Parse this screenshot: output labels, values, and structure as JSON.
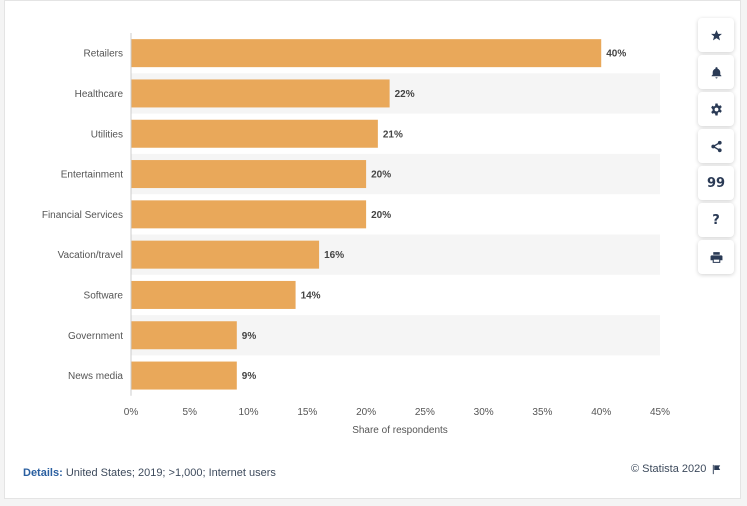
{
  "chart_data": {
    "type": "bar",
    "orientation": "horizontal",
    "categories": [
      "Retailers",
      "Healthcare",
      "Utilities",
      "Entertainment",
      "Financial Services",
      "Vacation/travel",
      "Software",
      "Government",
      "News media"
    ],
    "values": [
      40,
      22,
      21,
      20,
      20,
      16,
      14,
      9,
      9
    ],
    "value_labels": [
      "40%",
      "22%",
      "21%",
      "20%",
      "20%",
      "16%",
      "14%",
      "9%",
      "9%"
    ],
    "xlabel": "Share of respondents",
    "xlim": [
      0,
      45
    ],
    "xticks": [
      0,
      5,
      10,
      15,
      20,
      25,
      30,
      35,
      40,
      45
    ],
    "xtick_labels": [
      "0%",
      "5%",
      "10%",
      "15%",
      "20%",
      "25%",
      "30%",
      "35%",
      "40%",
      "45%"
    ],
    "grid": "alternating row bands",
    "colors": {
      "bar": "#e9a85a",
      "band": "#f5f5f5"
    }
  },
  "toolbar": {
    "icons": [
      "star-icon",
      "bell-icon",
      "gear-icon",
      "share-icon",
      "quote-icon",
      "help-icon",
      "print-icon"
    ],
    "quote_glyph": "99",
    "help_glyph": "?"
  },
  "footer": {
    "details_label": "Details:",
    "details_text": "United States; 2019; >1,000; Internet users",
    "copyright": "© Statista 2020"
  }
}
